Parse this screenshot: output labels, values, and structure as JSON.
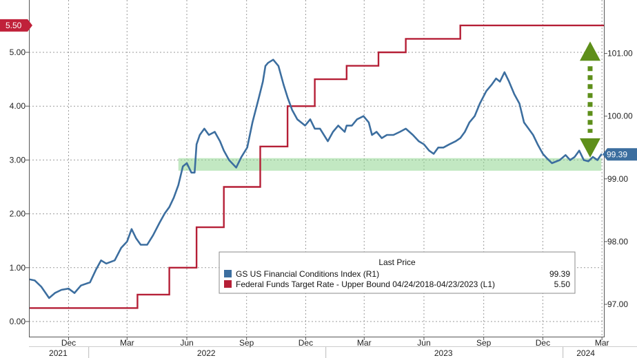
{
  "chart_data": {
    "type": "line",
    "title": "",
    "xlabel": "",
    "ylabel_left": "",
    "ylabel_right": "",
    "ylim_left": [
      -0.3,
      6.0
    ],
    "ylim_right": [
      96.6,
      102.3
    ],
    "left_ticks": [
      "0.00",
      "1.00",
      "2.00",
      "3.00",
      "4.00",
      "5.00"
    ],
    "right_ticks": [
      "97.00",
      "98.00",
      "99.00",
      "100.00",
      "101.00"
    ],
    "x_month_ticks": [
      "Dec",
      "Mar",
      "Jun",
      "Sep",
      "Dec",
      "Mar",
      "Jun",
      "Sep",
      "Dec",
      "Mar"
    ],
    "x_year_labels": [
      "2021",
      "2022",
      "2023",
      "2024"
    ],
    "grid": true,
    "legend": {
      "placement": "bottom-right",
      "header": "Last Price",
      "entries": [
        {
          "label": "GS US Financial Conditions Index  (R1)",
          "value": "99.39",
          "color": "#3c6e9f"
        },
        {
          "label": "Federal Funds Target Rate - Upper Bound 04/24/2018-04/23/2023   (L1)",
          "value": "5.50",
          "color": "#b51f36"
        }
      ]
    },
    "last_value_tags": {
      "left": "5.50",
      "right": "99.39"
    },
    "highlight_band": {
      "axis": "right",
      "from": 99.13,
      "to": 99.33,
      "color": "#8fd68f"
    },
    "annotation_arrow": {
      "type": "double-headed",
      "color": "#5e8f1a",
      "from": 99.34,
      "to": 101.19
    },
    "series": [
      {
        "name": "Federal Funds Target Rate - Upper Bound 04/24/2018-04/23/2023",
        "axis": "left",
        "color": "#b51f36",
        "step": true,
        "points": [
          [
            "2021-10-01",
            0.25
          ],
          [
            "2022-03-17",
            0.5
          ],
          [
            "2022-05-05",
            1.0
          ],
          [
            "2022-06-16",
            1.75
          ],
          [
            "2022-07-28",
            2.5
          ],
          [
            "2022-09-22",
            3.25
          ],
          [
            "2022-11-03",
            4.0
          ],
          [
            "2022-12-15",
            4.5
          ],
          [
            "2023-02-02",
            4.75
          ],
          [
            "2023-03-23",
            5.0
          ],
          [
            "2023-05-04",
            5.25
          ],
          [
            "2023-07-27",
            5.5
          ],
          [
            "2024-03-04",
            5.5
          ]
        ]
      },
      {
        "name": "GS US Financial Conditions Index",
        "axis": "right",
        "color": "#3c6e9f",
        "step": false,
        "points": [
          [
            "2021-10-01",
            97.4
          ],
          [
            "2021-10-10",
            97.38
          ],
          [
            "2021-10-20",
            97.28
          ],
          [
            "2021-11-01",
            97.1
          ],
          [
            "2021-11-10",
            97.18
          ],
          [
            "2021-11-20",
            97.23
          ],
          [
            "2021-12-01",
            97.25
          ],
          [
            "2021-12-10",
            97.18
          ],
          [
            "2021-12-20",
            97.3
          ],
          [
            "2022-01-03",
            97.35
          ],
          [
            "2022-01-12",
            97.55
          ],
          [
            "2022-01-20",
            97.7
          ],
          [
            "2022-01-28",
            97.65
          ],
          [
            "2022-02-10",
            97.7
          ],
          [
            "2022-02-20",
            97.9
          ],
          [
            "2022-03-01",
            98.0
          ],
          [
            "2022-03-08",
            98.2
          ],
          [
            "2022-03-15",
            98.05
          ],
          [
            "2022-03-22",
            97.95
          ],
          [
            "2022-04-01",
            97.95
          ],
          [
            "2022-04-10",
            98.1
          ],
          [
            "2022-04-20",
            98.3
          ],
          [
            "2022-04-28",
            98.45
          ],
          [
            "2022-05-05",
            98.55
          ],
          [
            "2022-05-12",
            98.7
          ],
          [
            "2022-05-19",
            98.9
          ],
          [
            "2022-05-26",
            99.2
          ],
          [
            "2022-06-01",
            99.25
          ],
          [
            "2022-06-08",
            99.1
          ],
          [
            "2022-06-13",
            99.1
          ],
          [
            "2022-06-16",
            99.55
          ],
          [
            "2022-06-21",
            99.7
          ],
          [
            "2022-06-28",
            99.8
          ],
          [
            "2022-07-05",
            99.7
          ],
          [
            "2022-07-14",
            99.75
          ],
          [
            "2022-07-22",
            99.6
          ],
          [
            "2022-07-28",
            99.45
          ],
          [
            "2022-08-05",
            99.3
          ],
          [
            "2022-08-16",
            99.18
          ],
          [
            "2022-08-24",
            99.35
          ],
          [
            "2022-09-02",
            99.5
          ],
          [
            "2022-09-10",
            99.9
          ],
          [
            "2022-09-20",
            100.3
          ],
          [
            "2022-09-26",
            100.55
          ],
          [
            "2022-09-30",
            100.8
          ],
          [
            "2022-10-04",
            100.85
          ],
          [
            "2022-10-12",
            100.9
          ],
          [
            "2022-10-20",
            100.8
          ],
          [
            "2022-10-28",
            100.5
          ],
          [
            "2022-11-03",
            100.3
          ],
          [
            "2022-11-10",
            100.1
          ],
          [
            "2022-11-18",
            99.95
          ],
          [
            "2022-11-30",
            99.85
          ],
          [
            "2022-12-08",
            99.95
          ],
          [
            "2022-12-15",
            99.8
          ],
          [
            "2022-12-23",
            99.8
          ],
          [
            "2023-01-04",
            99.6
          ],
          [
            "2023-01-12",
            99.75
          ],
          [
            "2023-01-20",
            99.85
          ],
          [
            "2023-01-30",
            99.75
          ],
          [
            "2023-02-02",
            99.85
          ],
          [
            "2023-02-10",
            99.85
          ],
          [
            "2023-02-18",
            99.95
          ],
          [
            "2023-02-28",
            100.0
          ],
          [
            "2023-03-08",
            99.9
          ],
          [
            "2023-03-13",
            99.7
          ],
          [
            "2023-03-20",
            99.75
          ],
          [
            "2023-03-28",
            99.65
          ],
          [
            "2023-04-05",
            99.7
          ],
          [
            "2023-04-15",
            99.7
          ],
          [
            "2023-04-25",
            99.75
          ],
          [
            "2023-05-04",
            99.8
          ],
          [
            "2023-05-15",
            99.7
          ],
          [
            "2023-05-24",
            99.6
          ],
          [
            "2023-06-01",
            99.55
          ],
          [
            "2023-06-09",
            99.45
          ],
          [
            "2023-06-16",
            99.4
          ],
          [
            "2023-06-23",
            99.5
          ],
          [
            "2023-07-01",
            99.5
          ],
          [
            "2023-07-10",
            99.55
          ],
          [
            "2023-07-20",
            99.6
          ],
          [
            "2023-07-27",
            99.65
          ],
          [
            "2023-08-03",
            99.75
          ],
          [
            "2023-08-10",
            99.9
          ],
          [
            "2023-08-18",
            100.0
          ],
          [
            "2023-08-26",
            100.2
          ],
          [
            "2023-09-05",
            100.4
          ],
          [
            "2023-09-13",
            100.5
          ],
          [
            "2023-09-20",
            100.6
          ],
          [
            "2023-09-26",
            100.55
          ],
          [
            "2023-10-03",
            100.7
          ],
          [
            "2023-10-10",
            100.55
          ],
          [
            "2023-10-18",
            100.35
          ],
          [
            "2023-10-26",
            100.2
          ],
          [
            "2023-11-02",
            99.9
          ],
          [
            "2023-11-09",
            99.8
          ],
          [
            "2023-11-16",
            99.7
          ],
          [
            "2023-11-23",
            99.55
          ],
          [
            "2023-12-01",
            99.4
          ],
          [
            "2023-12-08",
            99.32
          ],
          [
            "2023-12-15",
            99.25
          ],
          [
            "2023-12-27",
            99.3
          ],
          [
            "2024-01-05",
            99.38
          ],
          [
            "2024-01-12",
            99.3
          ],
          [
            "2024-01-19",
            99.35
          ],
          [
            "2024-01-26",
            99.45
          ],
          [
            "2024-02-02",
            99.3
          ],
          [
            "2024-02-09",
            99.28
          ],
          [
            "2024-02-16",
            99.35
          ],
          [
            "2024-02-23",
            99.3
          ],
          [
            "2024-02-29",
            99.39
          ]
        ]
      }
    ]
  }
}
